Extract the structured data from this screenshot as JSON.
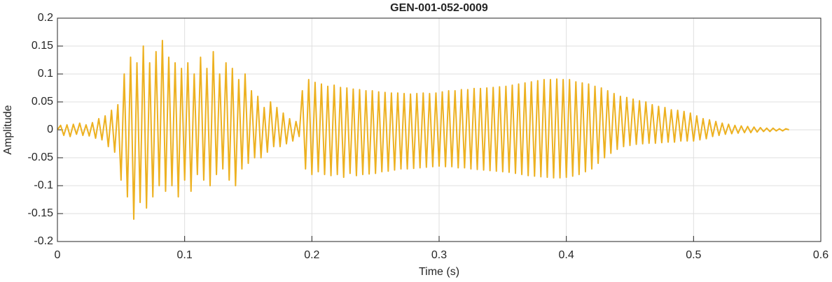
{
  "chart_data": {
    "type": "line",
    "title": "GEN-001-052-0009",
    "xlabel": "Time (s)",
    "ylabel": "Amplitude",
    "color": "#EDB120",
    "grid": true,
    "xlim": [
      0,
      0.6
    ],
    "xticks": [
      0,
      0.1,
      0.2,
      0.3,
      0.4,
      0.5,
      0.6
    ],
    "ylim": [
      -0.2,
      0.2
    ],
    "yticks": [
      -0.2,
      -0.15,
      -0.1,
      -0.05,
      0,
      0.05,
      0.1,
      0.15,
      0.2
    ],
    "x": [
      0,
      0.0025,
      0.005,
      0.0075,
      0.01,
      0.0125,
      0.015,
      0.0175,
      0.02,
      0.0225,
      0.025,
      0.0275,
      0.03,
      0.0325,
      0.035,
      0.0375,
      0.04,
      0.0425,
      0.045,
      0.0475,
      0.05,
      0.0525,
      0.055,
      0.0575,
      0.06,
      0.0625,
      0.065,
      0.0675,
      0.07,
      0.0725,
      0.075,
      0.0775,
      0.08,
      0.0825,
      0.085,
      0.0875,
      0.09,
      0.0925,
      0.095,
      0.0975,
      0.1,
      0.1025,
      0.105,
      0.1075,
      0.11,
      0.1125,
      0.115,
      0.1175,
      0.12,
      0.1225,
      0.125,
      0.1275,
      0.13,
      0.1325,
      0.135,
      0.1375,
      0.14,
      0.1425,
      0.145,
      0.1475,
      0.15,
      0.1525,
      0.155,
      0.1575,
      0.16,
      0.1625,
      0.165,
      0.1675,
      0.17,
      0.1725,
      0.175,
      0.1775,
      0.18,
      0.1825,
      0.185,
      0.1875,
      0.19,
      0.1925,
      0.195,
      0.1975,
      0.2,
      0.2025,
      0.205,
      0.2075,
      0.21,
      0.2125,
      0.215,
      0.2175,
      0.22,
      0.2225,
      0.225,
      0.2275,
      0.23,
      0.2325,
      0.235,
      0.2375,
      0.24,
      0.2425,
      0.245,
      0.2475,
      0.25,
      0.2525,
      0.255,
      0.2575,
      0.26,
      0.2625,
      0.265,
      0.2675,
      0.27,
      0.2725,
      0.275,
      0.2775,
      0.28,
      0.2825,
      0.285,
      0.2875,
      0.29,
      0.2925,
      0.295,
      0.2975,
      0.3,
      0.3025,
      0.305,
      0.3075,
      0.31,
      0.3125,
      0.315,
      0.3175,
      0.32,
      0.3225,
      0.325,
      0.3275,
      0.33,
      0.3325,
      0.335,
      0.3375,
      0.34,
      0.3425,
      0.345,
      0.3475,
      0.35,
      0.3525,
      0.355,
      0.3575,
      0.36,
      0.3625,
      0.365,
      0.3675,
      0.37,
      0.3725,
      0.375,
      0.3775,
      0.38,
      0.3825,
      0.385,
      0.3875,
      0.39,
      0.3925,
      0.395,
      0.3975,
      0.4,
      0.4025,
      0.405,
      0.4075,
      0.41,
      0.4125,
      0.415,
      0.4175,
      0.42,
      0.4225,
      0.425,
      0.4275,
      0.43,
      0.4325,
      0.435,
      0.4375,
      0.44,
      0.4425,
      0.445,
      0.4475,
      0.45,
      0.4525,
      0.455,
      0.4575,
      0.46,
      0.4625,
      0.465,
      0.4675,
      0.47,
      0.4725,
      0.475,
      0.4775,
      0.48,
      0.4825,
      0.485,
      0.4875,
      0.49,
      0.4925,
      0.495,
      0.4975,
      0.5,
      0.5025,
      0.505,
      0.5075,
      0.51,
      0.5125,
      0.515,
      0.5175,
      0.52,
      0.5225,
      0.525,
      0.5275,
      0.53,
      0.5325,
      0.535,
      0.5375,
      0.54,
      0.5425,
      0.545,
      0.5475,
      0.55,
      0.5525,
      0.555,
      0.5575,
      0.56,
      0.5625,
      0.565,
      0.5675,
      0.57,
      0.5725,
      0.575
    ],
    "values": [
      0,
      0.008,
      -0.01,
      0.009,
      -0.012,
      0.01,
      -0.008,
      0.012,
      -0.01,
      0.009,
      -0.011,
      0.013,
      -0.015,
      0.02,
      -0.018,
      0.025,
      -0.03,
      0.035,
      -0.04,
      0.045,
      -0.09,
      0.1,
      -0.12,
      0.13,
      -0.16,
      0.12,
      -0.13,
      0.15,
      -0.14,
      0.12,
      -0.12,
      0.14,
      -0.1,
      0.16,
      -0.11,
      0.13,
      -0.1,
      0.12,
      -0.12,
      0.11,
      -0.09,
      0.12,
      -0.11,
      0.1,
      -0.08,
      0.13,
      -0.09,
      0.11,
      -0.1,
      0.14,
      -0.08,
      0.1,
      -0.07,
      0.12,
      -0.09,
      0.11,
      -0.1,
      0.09,
      -0.07,
      0.1,
      -0.06,
      0.07,
      -0.05,
      0.06,
      -0.05,
      0.04,
      -0.04,
      0.05,
      -0.03,
      0.04,
      -0.03,
      0.03,
      -0.025,
      0.02,
      -0.02,
      0.015,
      -0.012,
      0.07,
      -0.07,
      0.09,
      -0.08,
      0.085,
      -0.075,
      0.082,
      -0.08,
      0.078,
      -0.082,
      0.08,
      -0.08,
      0.076,
      -0.085,
      0.075,
      -0.078,
      0.073,
      -0.082,
      0.072,
      -0.08,
      0.07,
      -0.079,
      0.07,
      -0.078,
      0.068,
      -0.075,
      0.067,
      -0.074,
      0.066,
      -0.072,
      0.066,
      -0.07,
      0.065,
      -0.07,
      0.064,
      -0.069,
      0.065,
      -0.068,
      0.066,
      -0.067,
      0.065,
      -0.066,
      0.066,
      -0.065,
      0.068,
      -0.066,
      0.07,
      -0.066,
      0.07,
      -0.068,
      0.072,
      -0.068,
      0.072,
      -0.07,
      0.074,
      -0.071,
      0.074,
      -0.072,
      0.075,
      -0.073,
      0.076,
      -0.074,
      0.077,
      -0.075,
      0.078,
      -0.076,
      0.08,
      -0.078,
      0.082,
      -0.08,
      0.084,
      -0.082,
      0.086,
      -0.083,
      0.088,
      -0.084,
      0.09,
      -0.085,
      0.09,
      -0.086,
      0.091,
      -0.086,
      0.09,
      -0.085,
      0.09,
      -0.083,
      0.086,
      -0.08,
      0.084,
      -0.075,
      0.082,
      -0.07,
      0.078,
      -0.06,
      0.075,
      -0.05,
      0.07,
      -0.042,
      0.065,
      -0.035,
      0.06,
      -0.03,
      0.058,
      -0.028,
      0.055,
      -0.026,
      0.052,
      -0.025,
      0.05,
      -0.024,
      0.045,
      -0.024,
      0.042,
      -0.023,
      0.04,
      -0.022,
      0.036,
      -0.022,
      0.035,
      -0.02,
      0.033,
      -0.02,
      0.03,
      -0.02,
      0.025,
      -0.018,
      0.02,
      -0.016,
      0.018,
      -0.012,
      0.015,
      -0.01,
      0.012,
      -0.008,
      0.01,
      -0.007,
      0.008,
      -0.006,
      0.007,
      -0.005,
      0.006,
      -0.005,
      0.005,
      -0.004,
      0.004,
      -0.003,
      0.003,
      -0.003,
      0.003,
      -0.002,
      0.002,
      -0.002,
      0.002,
      0
    ]
  }
}
